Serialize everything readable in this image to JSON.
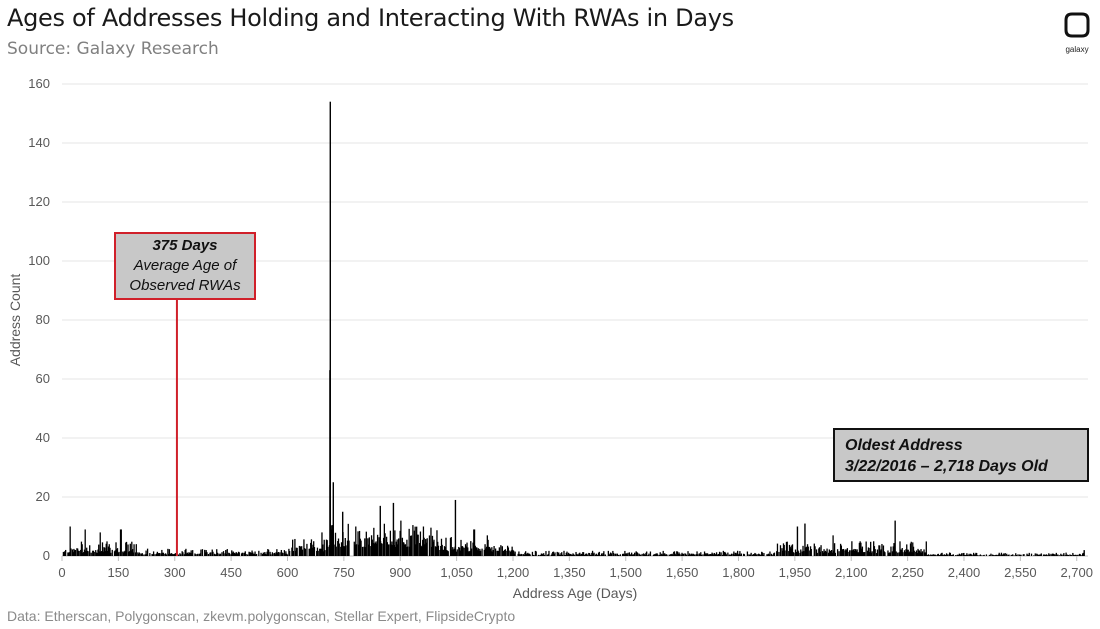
{
  "header": {
    "title": "Ages of Addresses Holding and Interacting With RWAs in Days",
    "subtitle": "Source: Galaxy Research",
    "logo_text": "galaxy"
  },
  "footer": {
    "source_note": "Data: Etherscan, Polygonscan, zkevm.polygonscan, Stellar Expert, FlipsideCrypto"
  },
  "annotations": {
    "average": {
      "line1": "375 Days",
      "line2": "Average Age of",
      "line3": "Observed RWAs",
      "value_days": 375
    },
    "oldest": {
      "line1": "Oldest Address",
      "line2": "3/22/2016 – 2,718 Days Old",
      "value_days": 2718
    }
  },
  "colors": {
    "bars": "#000000",
    "average_line": "#d0202a",
    "annotation_fill": "#c8c8c8",
    "grid": "#e6e6e6"
  },
  "chart_data": {
    "type": "bar",
    "title": "Ages of Addresses Holding and Interacting With RWAs in Days",
    "xlabel": "Address Age (Days)",
    "ylabel": "Address Count",
    "xlim": [
      0,
      2730
    ],
    "ylim": [
      0,
      160
    ],
    "grid": true,
    "x_ticks": [
      0,
      150,
      300,
      450,
      600,
      750,
      900,
      1050,
      1200,
      1350,
      1500,
      1650,
      1800,
      1950,
      2100,
      2250,
      2400,
      2550,
      2700
    ],
    "x_tick_labels": [
      "0",
      "150",
      "300",
      "450",
      "600",
      "750",
      "900",
      "1,050",
      "1,200",
      "1,350",
      "1,500",
      "1,650",
      "1,800",
      "1,950",
      "2,100",
      "2,250",
      "2,400",
      "2,550",
      "2,700"
    ],
    "y_ticks": [
      0,
      20,
      40,
      60,
      80,
      100,
      120,
      140,
      160
    ],
    "y_tick_labels": [
      "0",
      "20",
      "40",
      "60",
      "80",
      "100",
      "120",
      "140",
      "160"
    ],
    "notable_bars": [
      {
        "x": 712,
        "y": 154
      },
      {
        "x": 711,
        "y": 63
      },
      {
        "x": 720,
        "y": 25
      },
      {
        "x": 745,
        "y": 15
      },
      {
        "x": 1045,
        "y": 19
      },
      {
        "x": 880,
        "y": 18
      },
      {
        "x": 845,
        "y": 17
      },
      {
        "x": 2215,
        "y": 12
      },
      {
        "x": 1975,
        "y": 11
      },
      {
        "x": 1955,
        "y": 10
      },
      {
        "x": 2718,
        "y": 2
      }
    ],
    "regions": [
      {
        "from": 0,
        "to": 200,
        "base": 1,
        "amp": 4,
        "spikes": [
          [
            20,
            10
          ],
          [
            60,
            9
          ],
          [
            100,
            8
          ],
          [
            155,
            9
          ]
        ]
      },
      {
        "from": 200,
        "to": 600,
        "base": 0.5,
        "amp": 2,
        "spikes": []
      },
      {
        "from": 600,
        "to": 700,
        "base": 1.5,
        "amp": 5,
        "spikes": [
          [
            690,
            8
          ]
        ]
      },
      {
        "from": 700,
        "to": 1000,
        "base": 3,
        "amp": 8,
        "spikes": [
          [
            780,
            10
          ],
          [
            900,
            12
          ],
          [
            960,
            10
          ]
        ]
      },
      {
        "from": 1000,
        "to": 1200,
        "base": 1.5,
        "amp": 5,
        "spikes": [
          [
            1095,
            9
          ],
          [
            1130,
            7
          ]
        ]
      },
      {
        "from": 1200,
        "to": 1900,
        "base": 0.3,
        "amp": 1.5,
        "spikes": []
      },
      {
        "from": 1900,
        "to": 2300,
        "base": 1,
        "amp": 4,
        "spikes": [
          [
            2050,
            7
          ],
          [
            2100,
            5
          ]
        ]
      },
      {
        "from": 2300,
        "to": 2718,
        "base": 0.2,
        "amp": 1,
        "spikes": []
      }
    ]
  }
}
